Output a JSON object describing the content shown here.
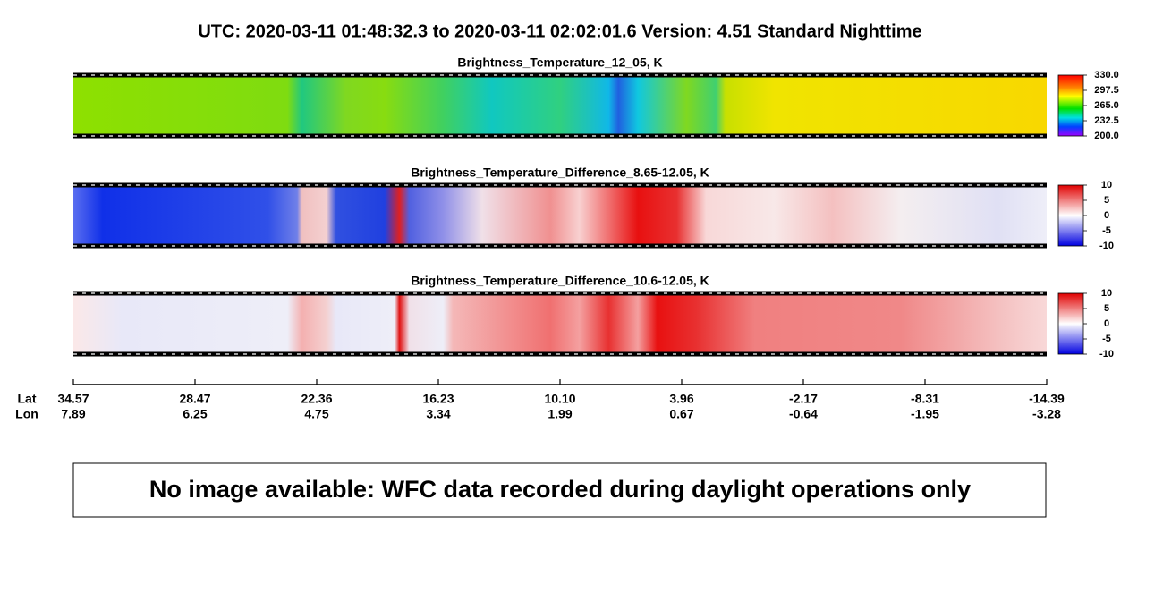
{
  "header": {
    "title": "UTC:  2020-03-11   01:48:32.3  to  2020-03-11   02:02:01.6    Version: 4.51  Standard Nighttime"
  },
  "panels": [
    {
      "title": "Brightness_Temperature_12_05, K",
      "colorbar_ticks": [
        "330.0",
        "297.5",
        "265.0",
        "232.5",
        "200.0"
      ]
    },
    {
      "title": "Brightness_Temperature_Difference_8.65-12.05, K",
      "colorbar_ticks": [
        "10",
        "5",
        "0",
        "-5",
        "-10"
      ]
    },
    {
      "title": "Brightness_Temperature_Difference_10.6-12.05, K",
      "colorbar_ticks": [
        "10",
        "5",
        "0",
        "-5",
        "-10"
      ]
    }
  ],
  "axis": {
    "lat_label": "Lat",
    "lon_label": "Lon",
    "lat": [
      "34.57",
      "28.47",
      "22.36",
      "16.23",
      "10.10",
      "3.96",
      "-2.17",
      "-8.31",
      "-14.39"
    ],
    "lon": [
      "7.89",
      "6.25",
      "4.75",
      "3.34",
      "1.99",
      "0.67",
      "-0.64",
      "-1.95",
      "-3.28"
    ]
  },
  "note": "No image available: WFC data recorded during daylight operations only"
}
